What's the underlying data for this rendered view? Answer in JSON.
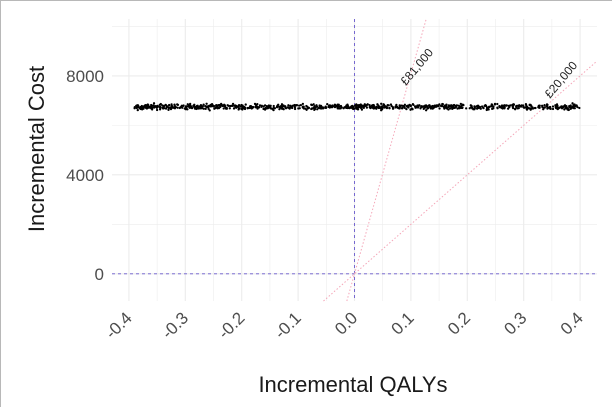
{
  "chart_data": {
    "type": "scatter",
    "title": "",
    "xlabel": "Incremental QALYs",
    "ylabel": "Incremental Cost",
    "xlim": [
      -0.43,
      0.43
    ],
    "ylim": [
      -1100,
      10300
    ],
    "x_ticks": [
      "-0.4",
      "-0.3",
      "-0.2",
      "-0.1",
      "0.0",
      "0.1",
      "0.2",
      "0.3",
      "0.4"
    ],
    "x_tick_values": [
      -0.4,
      -0.3,
      -0.2,
      -0.1,
      0.0,
      0.1,
      0.2,
      0.3,
      0.4
    ],
    "y_ticks": [
      "0",
      "4000",
      "8000"
    ],
    "y_tick_values": [
      0,
      4000,
      8000
    ],
    "grid": true,
    "colors": {
      "points": "#000000",
      "reference_lines": "#6a5acd",
      "threshold_lines": "#f4a6b8",
      "grid": "#ececec"
    },
    "point_cloud": {
      "x_min": -0.39,
      "x_max": 0.4,
      "y_center": 6750,
      "y_spread": 80
    },
    "reference_lines": {
      "x": 0,
      "y": 0
    },
    "thresholds": [
      {
        "label": "£81,000",
        "slope": 81000
      },
      {
        "label": "£20,000",
        "slope": 20000
      }
    ]
  }
}
